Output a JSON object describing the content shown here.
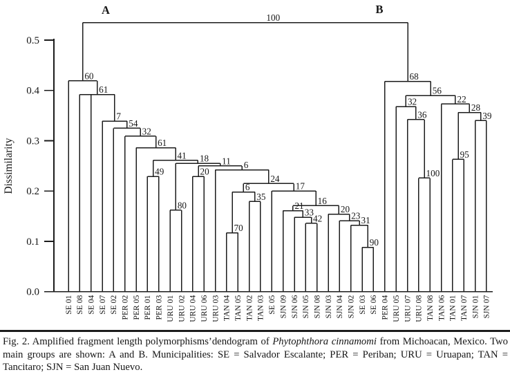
{
  "figure": {
    "caption": {
      "part1": "Fig. 2. Amplified fragment length polymorphisms’dendogram of ",
      "part2": "Phytophthora cinnamomi",
      "part3": " from Michoacan, Mexico. Two main groups are shown: A and B. Municipalities: SE = Salvador Escalante; PER = Periban; URU = Uruapan; TAN = Tancitaro; SJN = San Juan Nuevo."
    }
  },
  "chart_data": {
    "type": "dendrogram",
    "ylabel": "Dissimilarity",
    "ylim": [
      0.0,
      0.5
    ],
    "yticks": [
      {
        "label": "0.5",
        "value": 0.5
      },
      {
        "label": "0.4",
        "value": 0.4
      },
      {
        "label": "0.3",
        "value": 0.3
      },
      {
        "label": "0.2",
        "value": 0.2
      },
      {
        "label": "0.1",
        "value": 0.1
      },
      {
        "label": "0.0",
        "value": 0.0
      }
    ],
    "grid": false,
    "ink": "#1b1b1b",
    "group_labels": [
      "A",
      "B"
    ],
    "leaf_order": [
      "SE 01",
      "SE 08",
      "SE 04",
      "SE 07",
      "SE 02",
      "PER 02",
      "PER 05",
      "PER 01",
      "PER 03",
      "URU 01",
      "URU 02",
      "URU 04",
      "URU 06",
      "URU 03",
      "TAN 04",
      "TAN 05",
      "TAN 02",
      "TAN 03",
      "SE 05",
      "SJN 09",
      "SJN 06",
      "SJN 05",
      "SJN 08",
      "SJN 03",
      "SJN 04",
      "SJN 02",
      "SE 03",
      "SE 06",
      "PER 04",
      "URU 05",
      "URU 07",
      "URU 08",
      "TAN 08",
      "TAN 06",
      "TAN 01",
      "TAN 07",
      "SJN 01",
      "SJN 07"
    ],
    "tree": {
      "s": "100",
      "h": 0.535,
      "dx": 28,
      "c": [
        {
          "s": "60",
          "h": 0.419,
          "c": [
            "SE 01",
            {
              "s": "61",
              "h": 0.392,
              "c": [
                "SE 08",
                "SE 04",
                {
                  "s": "7",
                  "h": 0.339,
                  "c": [
                    "SE 07",
                    {
                      "s": "54",
                      "h": 0.325,
                      "c": [
                        "SE 02",
                        {
                          "s": "32",
                          "h": 0.309,
                          "c": [
                            "PER 02",
                            {
                              "s": "61",
                              "h": 0.286,
                              "c": [
                                "PER 05",
                                {
                                  "s": "41",
                                  "h": 0.261,
                                  "c": [
                                    {
                                      "s": "49",
                                      "h": 0.229,
                                      "c": [
                                        "PER 01",
                                        "PER 03"
                                      ]
                                    },
                                    {
                                      "s": "18",
                                      "h": 0.255,
                                      "c": [
                                        {
                                          "s": "80",
                                          "h": 0.162,
                                          "c": [
                                            "URU 01",
                                            "URU 02"
                                          ]
                                        },
                                        {
                                          "s": "11",
                                          "h": 0.25,
                                          "c": [
                                            {
                                              "s": "20",
                                              "h": 0.229,
                                              "c": [
                                                "URU 04",
                                                "URU 06"
                                              ]
                                            },
                                            {
                                              "s": "6",
                                              "h": 0.242,
                                              "c": [
                                                "URU 03",
                                                {
                                                  "s": "24",
                                                  "h": 0.215,
                                                  "c": [
                                                    {
                                                      "s": "6",
                                                      "h": 0.198,
                                                      "c": [
                                                        {
                                                          "s": "70",
                                                          "h": 0.117,
                                                          "c": [
                                                            "TAN 04",
                                                            "TAN 05"
                                                          ]
                                                        },
                                                        {
                                                          "s": "35",
                                                          "h": 0.179,
                                                          "c": [
                                                            "TAN 02",
                                                            "TAN 03"
                                                          ]
                                                        }
                                                      ]
                                                    },
                                                    {
                                                      "s": "17",
                                                      "h": 0.2,
                                                      "c": [
                                                        "SE 05",
                                                        {
                                                          "s": "16",
                                                          "h": 0.171,
                                                          "c": [
                                                            {
                                                              "s": "21",
                                                              "h": 0.161,
                                                              "c": [
                                                                "SJN 09",
                                                                {
                                                                  "s": "33",
                                                                  "h": 0.148,
                                                                  "c": [
                                                                    "SJN 06",
                                                                    {
                                                                      "s": "42",
                                                                      "h": 0.136,
                                                                      "c": [
                                                                        "SJN 05",
                                                                        "SJN 08"
                                                                      ]
                                                                    }
                                                                  ]
                                                                }
                                                              ]
                                                            },
                                                            {
                                                              "s": "20",
                                                              "h": 0.154,
                                                              "c": [
                                                                "SJN 03",
                                                                {
                                                                  "s": "23",
                                                                  "h": 0.141,
                                                                  "c": [
                                                                    "SJN 04",
                                                                    {
                                                                      "s": "31",
                                                                      "h": 0.132,
                                                                      "c": [
                                                                        "SJN 02",
                                                                        {
                                                                          "s": "90",
                                                                          "h": 0.088,
                                                                          "c": [
                                                                            "SE 03",
                                                                            "SE 06"
                                                                          ]
                                                                        }
                                                                      ]
                                                                    }
                                                                  ]
                                                                }
                                                              ]
                                                            }
                                                          ]
                                                        }
                                                      ]
                                                    }
                                                  ]
                                                }
                                              ]
                                            }
                                          ]
                                        }
                                      ]
                                    }
                                  ]
                                }
                              ]
                            }
                          ]
                        }
                      ]
                    }
                  ]
                }
              ]
            }
          ]
        },
        {
          "s": "68",
          "h": 0.418,
          "c": [
            "PER 04",
            {
              "s": "56",
              "h": 0.39,
              "c": [
                {
                  "s": "32",
                  "h": 0.368,
                  "c": [
                    "URU 05",
                    {
                      "s": "36",
                      "h": 0.342,
                      "c": [
                        "URU 07",
                        {
                          "s": "100",
                          "h": 0.226,
                          "c": [
                            "URU 08",
                            "TAN 08"
                          ]
                        }
                      ]
                    }
                  ]
                },
                {
                  "s": "22",
                  "h": 0.373,
                  "c": [
                    "TAN 06",
                    {
                      "s": "28",
                      "h": 0.356,
                      "c": [
                        {
                          "s": "95",
                          "h": 0.263,
                          "c": [
                            "TAN 01",
                            "TAN 07"
                          ]
                        },
                        {
                          "s": "39",
                          "h": 0.34,
                          "c": [
                            "SJN 01",
                            "SJN 07"
                          ]
                        }
                      ]
                    }
                  ]
                }
              ]
            }
          ]
        }
      ]
    }
  }
}
